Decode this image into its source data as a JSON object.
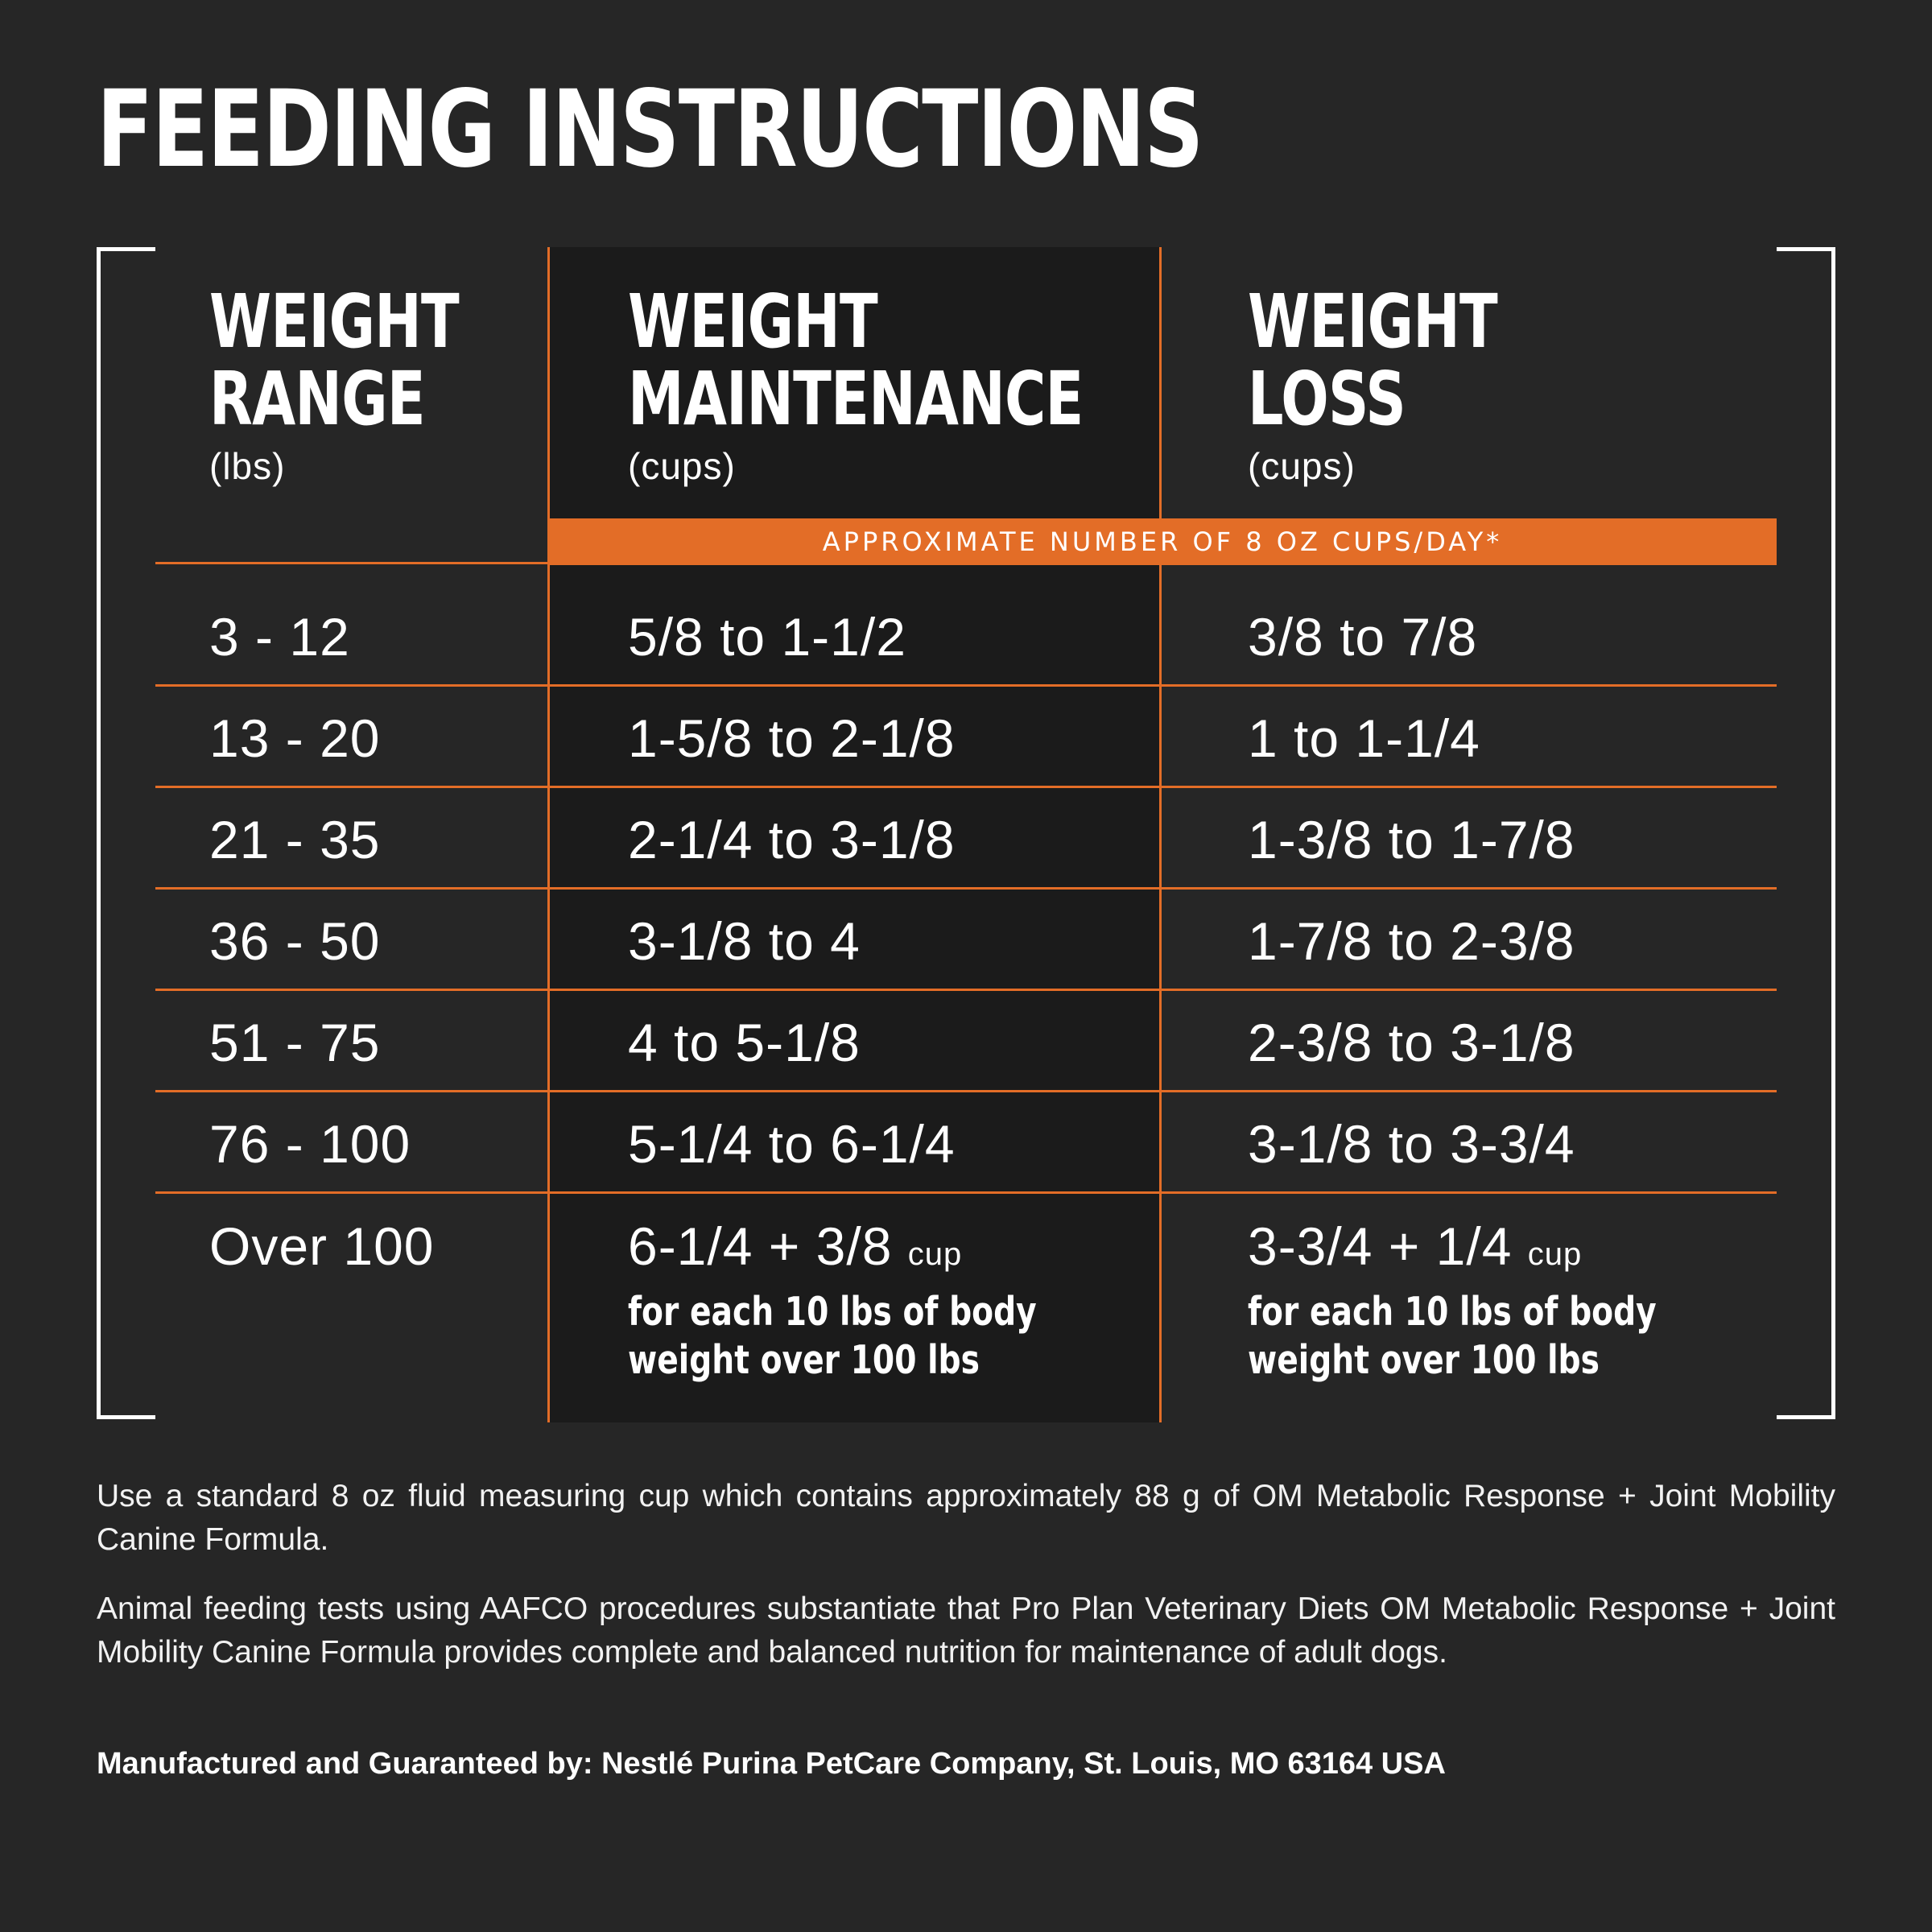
{
  "title": "FEEDING INSTRUCTIONS",
  "band_text": "APPROXIMATE NUMBER OF 8 OZ CUPS/DAY*",
  "headers": [
    {
      "line1": "WEIGHT",
      "line2": "RANGE",
      "unit": "(lbs)"
    },
    {
      "line1": "WEIGHT",
      "line2": "MAINTENANCE",
      "unit": "(cups)"
    },
    {
      "line1": "WEIGHT",
      "line2": "LOSS",
      "unit": "(cups)"
    }
  ],
  "rows": [
    {
      "range": "3 - 12",
      "maintenance": "5/8 to 1-1/2",
      "loss": "3/8 to 7/8"
    },
    {
      "range": "13 - 20",
      "maintenance": "1-5/8 to 2-1/8",
      "loss": "1 to 1-1/4"
    },
    {
      "range": "21 - 35",
      "maintenance": "2-1/4 to 3-1/8",
      "loss": "1-3/8 to 1-7/8"
    },
    {
      "range": "36 - 50",
      "maintenance": "3-1/8 to 4",
      "loss": "1-7/8 to 2-3/8"
    },
    {
      "range": "51 - 75",
      "maintenance": "4 to 5-1/8",
      "loss": "2-3/8 to 3-1/8"
    },
    {
      "range": "76 - 100",
      "maintenance": "5-1/4 to 6-1/4",
      "loss": "3-1/8 to 3-3/4"
    }
  ],
  "last_row": {
    "range": "Over 100",
    "maintenance_main": "6-1/4 + 3/8",
    "maintenance_unit": "cup",
    "maintenance_note_1": "for each 10 lbs of body",
    "maintenance_note_2": "weight over 100 lbs",
    "loss_main": "3-3/4 + 1/4",
    "loss_unit": "cup",
    "loss_note_1": "for each 10 lbs of body",
    "loss_note_2": "weight over 100 lbs"
  },
  "paragraphs": [
    "Use a standard 8 oz fluid measuring cup which contains approximately 88 g of OM Metabolic Response + Joint Mobility Canine Formula.",
    "Animal feeding tests using AAFCO procedures substantiate that Pro Plan Veterinary Diets OM Metabolic Response + Joint Mobility Canine Formula provides complete and balanced nutrition for maintenance of adult dogs."
  ],
  "manufacturer": "Manufactured and Guaranteed by: Nestlé Purina PetCare Company, St. Louis, MO 63164 USA",
  "colors": {
    "background": "#262626",
    "accent": "#e36d27",
    "column": "#1b1b1b"
  }
}
